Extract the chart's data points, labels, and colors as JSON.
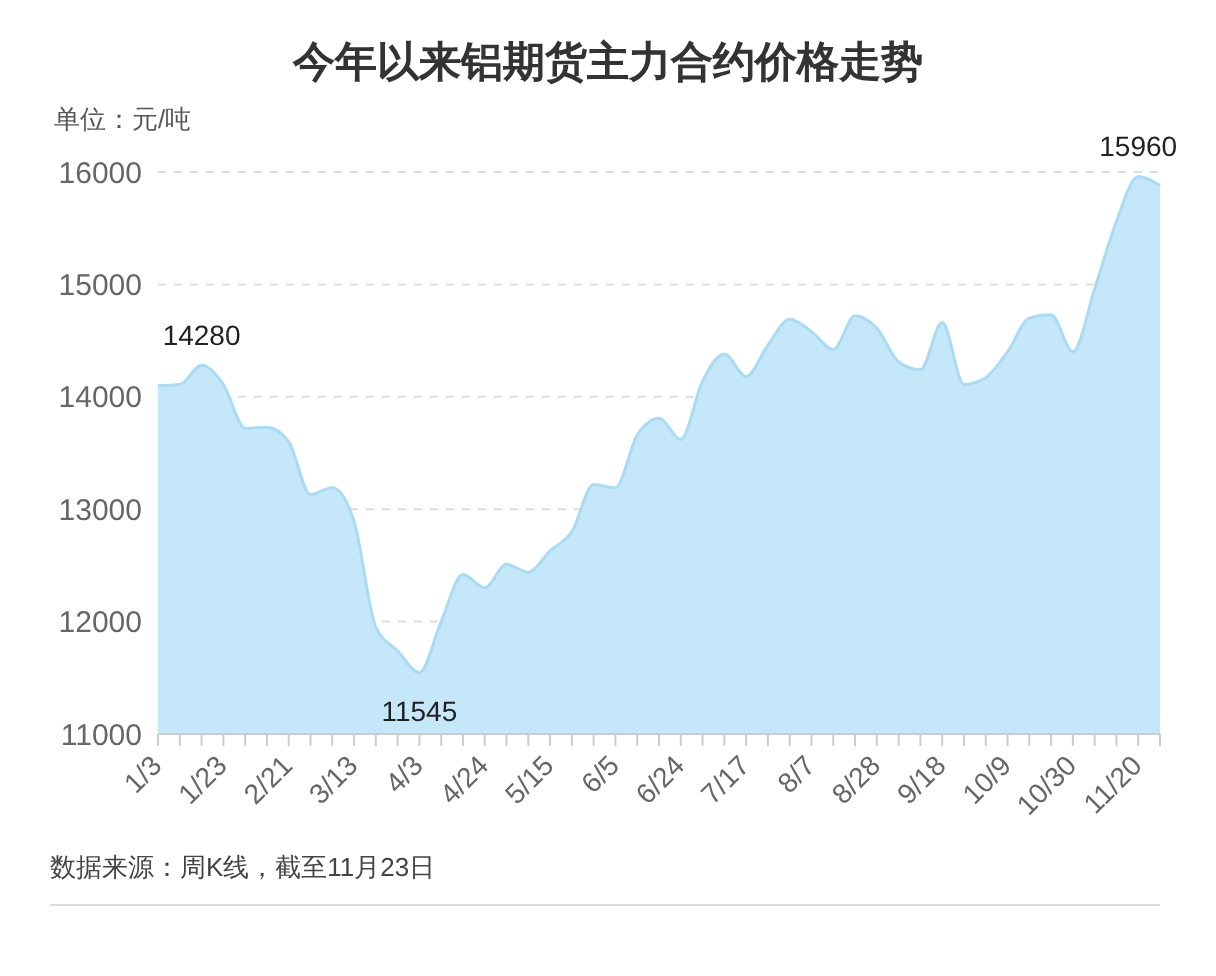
{
  "chart_data": {
    "type": "area",
    "title": "今年以来铝期货主力合约价格走势",
    "ylabel": "单位：元/吨",
    "categories": [
      "1/3",
      null,
      null,
      "1/23",
      null,
      null,
      "2/21",
      null,
      null,
      "3/13",
      null,
      null,
      "4/3",
      null,
      null,
      "4/24",
      null,
      null,
      "5/15",
      null,
      null,
      "6/5",
      null,
      null,
      "6/24",
      null,
      null,
      "7/17",
      null,
      null,
      "8/7",
      null,
      null,
      "8/28",
      null,
      null,
      "9/18",
      null,
      null,
      "10/9",
      null,
      null,
      "10/30",
      null,
      null,
      "11/20",
      null
    ],
    "values": [
      14100,
      14110,
      14280,
      14110,
      13720,
      13730,
      13600,
      13130,
      13190,
      12890,
      11950,
      11740,
      11545,
      12000,
      12420,
      12300,
      12510,
      12440,
      12630,
      12800,
      13220,
      13190,
      13660,
      13810,
      13620,
      14140,
      14380,
      14180,
      14460,
      14690,
      14580,
      14420,
      14720,
      14610,
      14310,
      14240,
      14660,
      14110,
      14170,
      14400,
      14700,
      14730,
      14400,
      14960,
      15560,
      15960,
      15880
    ],
    "value_labels": [
      null,
      null,
      "14280",
      null,
      null,
      null,
      null,
      null,
      null,
      null,
      null,
      null,
      "11545",
      null,
      null,
      null,
      null,
      null,
      null,
      null,
      null,
      null,
      null,
      null,
      null,
      null,
      null,
      null,
      null,
      null,
      null,
      null,
      null,
      null,
      null,
      null,
      null,
      null,
      null,
      null,
      null,
      null,
      null,
      null,
      null,
      "15960",
      null
    ],
    "color": "#a9dcf4",
    "ylim": [
      11000,
      16000
    ],
    "yticks": [
      11000,
      12000,
      13000,
      14000,
      15000,
      16000
    ],
    "grid": "y",
    "annotations": [
      "数据来源：周K线，截至11月23日"
    ]
  }
}
